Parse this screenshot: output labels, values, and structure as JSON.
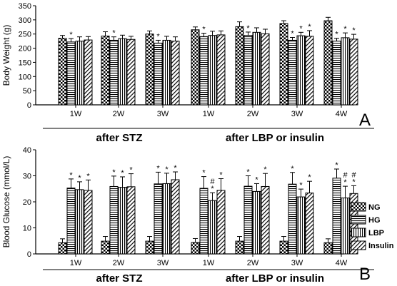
{
  "legend": [
    "NG",
    "HG",
    "LBP",
    "Insulin"
  ],
  "chart_data": [
    {
      "type": "bar",
      "panel_label": "A",
      "ylabel": "Body Weight (g)",
      "ylim": [
        0,
        350
      ],
      "yticks": [
        0,
        50,
        100,
        150,
        200,
        250,
        300,
        350
      ],
      "categories": [
        "1W",
        "2W",
        "3W",
        "1W",
        "2W",
        "3W",
        "4W"
      ],
      "groups": [
        {
          "label": "after STZ",
          "categories": [
            0,
            1,
            2
          ]
        },
        {
          "label": "after LBP or insulin",
          "categories": [
            3,
            4,
            5,
            6
          ]
        }
      ],
      "series": [
        {
          "name": "NG",
          "values": [
            235,
            243,
            250,
            265,
            276,
            287,
            297
          ],
          "errors": [
            10,
            15,
            11,
            10,
            17,
            10,
            12
          ]
        },
        {
          "name": "HG",
          "values": [
            222,
            228,
            218,
            241,
            245,
            228,
            225
          ],
          "errors": [
            12,
            12,
            10,
            12,
            12,
            10,
            10
          ]
        },
        {
          "name": "LBP",
          "values": [
            225,
            234,
            228,
            245,
            256,
            244,
            237
          ],
          "errors": [
            15,
            12,
            14,
            15,
            16,
            12,
            17
          ]
        },
        {
          "name": "Insulin",
          "values": [
            229,
            231,
            225,
            247,
            251,
            242,
            232
          ],
          "errors": [
            12,
            11,
            15,
            14,
            16,
            20,
            17
          ]
        }
      ],
      "markers": [
        [
          [],
          [
            "*"
          ],
          [],
          []
        ],
        [
          [],
          [
            "*"
          ],
          [],
          []
        ],
        [
          [],
          [
            "*"
          ],
          [],
          []
        ],
        [
          [],
          [
            "*"
          ],
          [],
          []
        ],
        [
          [],
          [
            "*"
          ],
          [],
          []
        ],
        [
          [],
          [
            "*"
          ],
          [
            "*"
          ],
          [
            "*"
          ]
        ],
        [
          [],
          [
            "*"
          ],
          [
            "*"
          ],
          [
            "*"
          ]
        ]
      ]
    },
    {
      "type": "bar",
      "panel_label": "B",
      "ylabel": "Blood Glucose (mmol/L)",
      "ylim": [
        0,
        40
      ],
      "yticks": [
        0,
        10,
        20,
        30,
        40
      ],
      "categories": [
        "1W",
        "2W",
        "3W",
        "1W",
        "2W",
        "3W",
        "4W"
      ],
      "groups": [
        {
          "label": "after STZ",
          "categories": [
            0,
            1,
            2
          ]
        },
        {
          "label": "after LBP or insulin",
          "categories": [
            3,
            4,
            5,
            6
          ]
        }
      ],
      "series": [
        {
          "name": "NG",
          "values": [
            4.3,
            4.9,
            4.9,
            4.4,
            4.9,
            4.9,
            4.3
          ],
          "errors": [
            1.5,
            1.8,
            1.8,
            1.5,
            1.8,
            1.8,
            1.5
          ]
        },
        {
          "name": "HG",
          "values": [
            25.3,
            25.9,
            26.9,
            25.2,
            26.0,
            26.8,
            29.1
          ],
          "errors": [
            3.5,
            4.0,
            4.5,
            4.5,
            4.0,
            4.5,
            3.5
          ]
        },
        {
          "name": "LBP",
          "values": [
            24.7,
            25.6,
            27.0,
            20.5,
            24.0,
            21.9,
            21.5
          ],
          "errors": [
            3.0,
            4.0,
            4.0,
            3.0,
            3.0,
            3.0,
            4.5
          ]
        },
        {
          "name": "Insulin",
          "values": [
            24.4,
            25.8,
            28.5,
            24.4,
            25.9,
            23.4,
            23.2
          ],
          "errors": [
            4.0,
            5.0,
            3.0,
            4.5,
            5.0,
            4.5,
            3.0
          ]
        }
      ],
      "markers": [
        [
          [],
          [
            "*"
          ],
          [
            "*"
          ],
          [
            "*"
          ]
        ],
        [
          [],
          [
            "*"
          ],
          [
            "*"
          ],
          [
            "*"
          ]
        ],
        [
          [],
          [
            "*"
          ],
          [
            "*"
          ],
          [
            "*"
          ]
        ],
        [
          [],
          [
            "*"
          ],
          [
            "#",
            "*"
          ],
          [
            "*"
          ]
        ],
        [
          [],
          [
            "*"
          ],
          [
            "*"
          ],
          [
            "*"
          ]
        ],
        [
          [],
          [
            "*"
          ],
          [
            "*"
          ],
          [
            "*"
          ]
        ],
        [
          [],
          [
            "*"
          ],
          [
            "#",
            "*"
          ],
          [
            "#",
            "*"
          ]
        ]
      ]
    }
  ]
}
